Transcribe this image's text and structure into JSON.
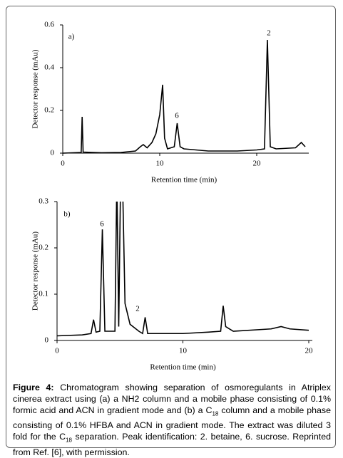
{
  "chart_data": [
    {
      "type": "line",
      "ylabel": "Detector response (mAu)",
      "xlabel": "Retention time (min)",
      "annotations": [
        "a)",
        "6",
        "2"
      ],
      "x": [
        0,
        1.9,
        2.0,
        2.1,
        4,
        6,
        7.5,
        8,
        8.3,
        8.7,
        9.2,
        9.6,
        10,
        10.3,
        10.5,
        10.8,
        11.5,
        11.8,
        12.1,
        12.5,
        15,
        18,
        20,
        20.8,
        21.1,
        21.4,
        22,
        24,
        24.6,
        25
      ],
      "series": [
        {
          "color": "#000000",
          "values": [
            0,
            0.003,
            0.17,
            0.005,
            0.002,
            0.003,
            0.01,
            0.03,
            0.04,
            0.025,
            0.05,
            0.09,
            0.18,
            0.32,
            0.07,
            0.02,
            0.03,
            0.14,
            0.03,
            0.02,
            0.01,
            0.01,
            0.015,
            0.02,
            0.53,
            0.03,
            0.02,
            0.025,
            0.05,
            0.03
          ]
        }
      ],
      "xlim": [
        0,
        25
      ],
      "xticks": [
        0,
        10,
        20
      ],
      "ylim": [
        0,
        0.6
      ],
      "yticks": [
        0,
        0.2,
        0.4,
        0.6
      ]
    },
    {
      "type": "line",
      "ylabel": "Detector response (mAu)",
      "xlabel": "Retention time (min)",
      "annotations": [
        "b)",
        "6",
        "2"
      ],
      "x": [
        0,
        2,
        2.7,
        2.9,
        3.1,
        3.4,
        3.6,
        3.8,
        4.5,
        4.6,
        4.75,
        4.9,
        5.05,
        5.2,
        5.4,
        5.8,
        6.5,
        6.8,
        7.0,
        7.2,
        10,
        12,
        13,
        13.2,
        13.4,
        14,
        17,
        17.8,
        18.5,
        20
      ],
      "series": [
        {
          "color": "#000000",
          "values": [
            0.01,
            0.012,
            0.015,
            0.045,
            0.018,
            0.02,
            0.24,
            0.02,
            0.02,
            0.02,
            0.35,
            0.03,
            0.35,
            0.35,
            0.08,
            0.035,
            0.02,
            0.015,
            0.05,
            0.015,
            0.015,
            0.018,
            0.02,
            0.075,
            0.03,
            0.02,
            0.025,
            0.03,
            0.025,
            0.022
          ]
        }
      ],
      "xlim": [
        0,
        20
      ],
      "xticks": [
        0,
        10,
        20
      ],
      "ylim": [
        0,
        0.3
      ],
      "yticks": [
        0,
        0.1,
        0.2,
        0.3
      ]
    }
  ],
  "caption": {
    "label": "Figure 4:",
    "part1": " Chromatogram showing separation of osmoregulants in Atriplex cinerea extract using (a) a NH2 column and a mobile phase consisting of 0.1% formic acid and ACN in gradient mode and (b) a C",
    "sub1": "18",
    "part2": " column and a mobile phase consisting of 0.1% HFBA and ACN in gradient mode. The extract was diluted 3 fold for the C",
    "sub2": "18",
    "part3": " separation. Peak identification: 2. betaine, 6. sucrose. Reprinted from Ref. [6], with permission."
  }
}
